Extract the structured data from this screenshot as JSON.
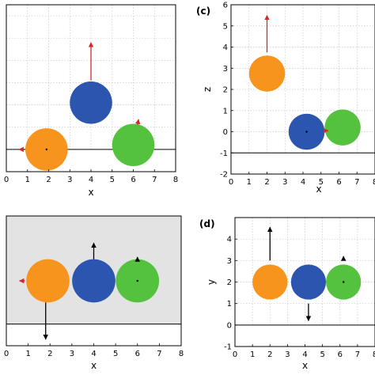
{
  "chart_data": [
    {
      "type": "scatter",
      "panel": "",
      "xlabel": "x",
      "ylabel": "",
      "xlim": [
        0,
        8
      ],
      "ylim": [
        -1,
        6.5
      ],
      "xticks": [
        0,
        1,
        2,
        3,
        4,
        5,
        6,
        7,
        8
      ],
      "yticks": [],
      "ground": 0,
      "grid": true,
      "background": "#ffffff",
      "circles": [
        {
          "x": 1.9,
          "y": 0,
          "r": 1,
          "color": "#f7941d",
          "dot": true
        },
        {
          "x": 4.0,
          "y": 2.1,
          "r": 1,
          "color": "#2b55ae",
          "dot": false
        },
        {
          "x": 6.0,
          "y": 0.2,
          "r": 1,
          "color": "#55c23f",
          "dot": false
        }
      ],
      "arrows": [
        {
          "x0": 4.0,
          "y0": 3.1,
          "x1": 4.0,
          "y1": 4.8,
          "color": "#d62728"
        },
        {
          "x0": 6.2,
          "y0": 1.1,
          "x1": 6.25,
          "y1": 1.35,
          "color": "#d62728"
        },
        {
          "x0": 0.8,
          "y0": 0,
          "x1": 0.6,
          "y1": 0,
          "color": "#d62728"
        }
      ]
    },
    {
      "type": "scatter",
      "panel": "(c)",
      "xlabel": "x",
      "ylabel": "z",
      "xlim": [
        0,
        8
      ],
      "ylim": [
        -2,
        6
      ],
      "xticks": [
        0,
        1,
        2,
        3,
        4,
        5,
        6,
        7,
        8
      ],
      "yticks": [
        -2,
        -1,
        0,
        1,
        2,
        3,
        4,
        5,
        6
      ],
      "ground": -1,
      "grid": true,
      "background": "#ffffff",
      "circles": [
        {
          "x": 2.0,
          "y": 2.75,
          "r": 1,
          "color": "#f7941d",
          "dot": false
        },
        {
          "x": 4.2,
          "y": 0,
          "r": 1,
          "color": "#2b55ae",
          "dot": true
        },
        {
          "x": 6.2,
          "y": 0.2,
          "r": 1,
          "color": "#55c23f",
          "dot": false
        }
      ],
      "arrows": [
        {
          "x0": 2.0,
          "y0": 3.75,
          "x1": 2.0,
          "y1": 5.5,
          "color": "#d62728"
        },
        {
          "x0": 5.2,
          "y0": 0.05,
          "x1": 5.4,
          "y1": 0.05,
          "color": "#d62728"
        }
      ]
    },
    {
      "type": "scatter",
      "panel": "",
      "xlabel": "x",
      "ylabel": "",
      "xlim": [
        0,
        8
      ],
      "ylim": [
        -1,
        5
      ],
      "xticks": [
        0,
        1,
        2,
        3,
        4,
        5,
        6,
        7,
        8
      ],
      "yticks": [],
      "ground": 0,
      "grid": false,
      "background": "#e3e3e3",
      "circles": [
        {
          "x": 1.9,
          "y": 2,
          "r": 1,
          "color": "#f7941d",
          "dot": false
        },
        {
          "x": 4.0,
          "y": 2,
          "r": 1,
          "color": "#2b55ae",
          "dot": false
        },
        {
          "x": 6.0,
          "y": 2,
          "r": 1,
          "color": "#55c23f",
          "dot": true
        }
      ],
      "arrows": [
        {
          "x0": 4.0,
          "y0": 3,
          "x1": 4.0,
          "y1": 3.75,
          "color": "#000000"
        },
        {
          "x0": 1.8,
          "y0": 1,
          "x1": 1.8,
          "y1": -0.7,
          "color": "#000000"
        },
        {
          "x0": 0.85,
          "y0": 2,
          "x1": 0.6,
          "y1": 2,
          "color": "#d62728"
        },
        {
          "x0": 6.0,
          "y0": 3.0,
          "x1": 6.0,
          "y1": 3.1,
          "color": "#000000"
        }
      ]
    },
    {
      "type": "scatter",
      "panel": "(d)",
      "xlabel": "x",
      "ylabel": "y",
      "xlim": [
        0,
        8
      ],
      "ylim": [
        -1,
        5
      ],
      "xticks": [
        0,
        1,
        2,
        3,
        4,
        5,
        6,
        7,
        8
      ],
      "yticks": [
        -1,
        0,
        1,
        2,
        3,
        4
      ],
      "ground": 0,
      "grid": true,
      "background": "#ffffff",
      "circles": [
        {
          "x": 2.0,
          "y": 2,
          "r": 1,
          "color": "#f7941d",
          "dot": false
        },
        {
          "x": 4.2,
          "y": 2,
          "r": 1,
          "color": "#2b55ae",
          "dot": false
        },
        {
          "x": 6.2,
          "y": 2,
          "r": 1,
          "color": "#55c23f",
          "dot": true
        }
      ],
      "arrows": [
        {
          "x0": 2.0,
          "y0": 3,
          "x1": 2.0,
          "y1": 4.55,
          "color": "#000000"
        },
        {
          "x0": 4.2,
          "y0": 1,
          "x1": 4.2,
          "y1": 0.2,
          "color": "#000000"
        },
        {
          "x0": 6.2,
          "y0": 3.0,
          "x1": 6.2,
          "y1": 3.2,
          "color": "#000000"
        }
      ]
    }
  ]
}
